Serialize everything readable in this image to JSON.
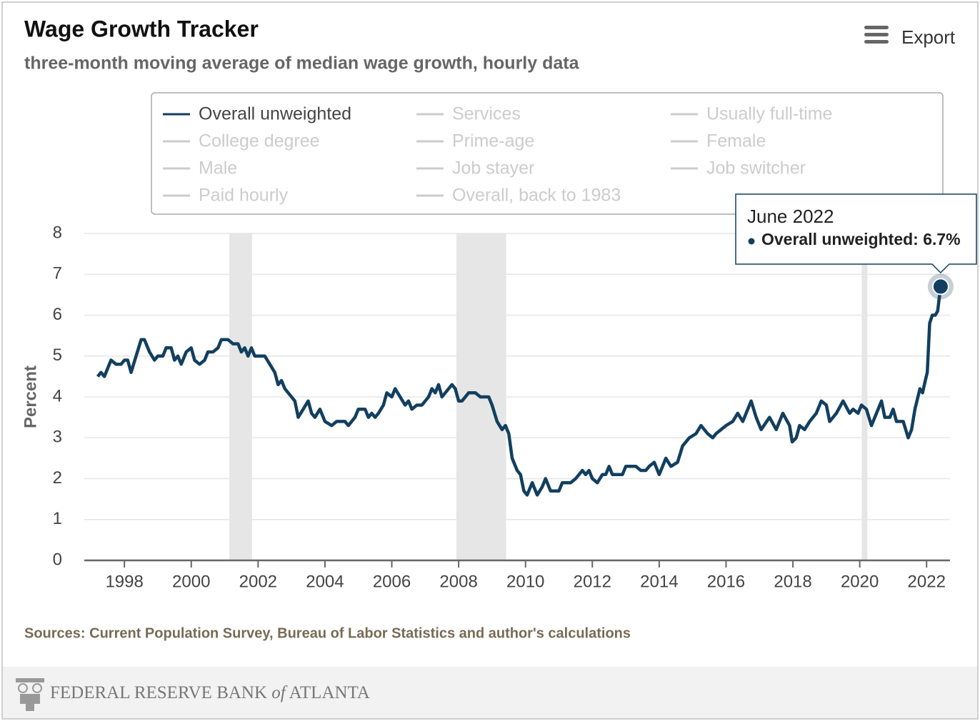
{
  "chart_data": {
    "type": "line",
    "title": "Wage Growth Tracker",
    "subtitle": "three-month moving average of median wage growth, hourly data",
    "export_label": "Export",
    "y_label": "Percent",
    "source": "Sources: Current Population Survey, Bureau of Labor Statistics and author's calculations",
    "footer": [
      "FEDERAL RESERVE BANK",
      "of",
      "ATLANTA"
    ],
    "xlim": [
      1996.8,
      2022.7
    ],
    "ylim": [
      0,
      8
    ],
    "xticks": [
      1998,
      2000,
      2002,
      2004,
      2006,
      2008,
      2010,
      2012,
      2014,
      2016,
      2018,
      2020,
      2022
    ],
    "yticks": [
      0,
      1,
      2,
      3,
      4,
      5,
      6,
      7,
      8
    ],
    "grid": true,
    "recessions": [
      [
        2001.14,
        2001.82
      ],
      [
        2007.93,
        2009.42
      ],
      [
        2020.06,
        2020.23
      ]
    ],
    "hidden_color": "#cccccc",
    "hidden_series": [
      "Services",
      "Usually full-time",
      "College degree",
      "Prime-age",
      "Female",
      "Male",
      "Job stayer",
      "Job switcher",
      "Paid hourly",
      "Overall, back to 1983"
    ],
    "tooltip": {
      "title": "June 2022",
      "text": "Overall unweighted: 6.7%"
    },
    "x": [
      1997.2,
      1997.3,
      1997.4,
      1997.5,
      1997.6,
      1997.75,
      1997.9,
      1998.0,
      1998.1,
      1998.2,
      1998.35,
      1998.5,
      1998.6,
      1998.75,
      1998.9,
      1999.0,
      1999.15,
      1999.25,
      1999.4,
      1999.5,
      1999.6,
      1999.7,
      1999.85,
      2000.0,
      2000.1,
      2000.25,
      2000.4,
      2000.5,
      2000.65,
      2000.8,
      2000.9,
      2001.1,
      2001.25,
      2001.4,
      2001.5,
      2001.6,
      2001.7,
      2001.8,
      2001.9,
      2002.2,
      2002.35,
      2002.5,
      2002.6,
      2002.7,
      2002.8,
      2003.0,
      2003.1,
      2003.2,
      2003.35,
      2003.5,
      2003.6,
      2003.7,
      2003.85,
      2004.0,
      2004.2,
      2004.35,
      2004.6,
      2004.7,
      2004.9,
      2005.0,
      2005.2,
      2005.3,
      2005.4,
      2005.5,
      2005.6,
      2005.75,
      2005.85,
      2006.0,
      2006.1,
      2006.25,
      2006.4,
      2006.5,
      2006.6,
      2006.75,
      2006.9,
      2007.1,
      2007.2,
      2007.3,
      2007.4,
      2007.5,
      2007.7,
      2007.8,
      2007.9,
      2008.0,
      2008.1,
      2008.3,
      2008.5,
      2008.65,
      2008.9,
      2009.0,
      2009.15,
      2009.3,
      2009.4,
      2009.5,
      2009.6,
      2009.75,
      2009.85,
      2009.95,
      2010.05,
      2010.2,
      2010.35,
      2010.5,
      2010.6,
      2010.75,
      2011.0,
      2011.1,
      2011.35,
      2011.5,
      2011.6,
      2011.7,
      2011.8,
      2011.9,
      2012.0,
      2012.15,
      2012.3,
      2012.4,
      2012.5,
      2012.6,
      2012.9,
      2013.0,
      2013.3,
      2013.45,
      2013.6,
      2013.7,
      2013.85,
      2014.0,
      2014.1,
      2014.2,
      2014.35,
      2014.55,
      2014.7,
      2014.9,
      2015.1,
      2015.25,
      2015.45,
      2015.6,
      2015.7,
      2015.85,
      2016.0,
      2016.2,
      2016.35,
      2016.5,
      2016.75,
      2016.9,
      2017.05,
      2017.3,
      2017.5,
      2017.7,
      2017.9,
      2017.98,
      2018.1,
      2018.2,
      2018.35,
      2018.5,
      2018.7,
      2018.85,
      2019.0,
      2019.1,
      2019.3,
      2019.5,
      2019.7,
      2019.8,
      2019.95,
      2020.05,
      2020.2,
      2020.35,
      2020.5,
      2020.65,
      2020.75,
      2020.9,
      2021.0,
      2021.1,
      2021.3,
      2021.45,
      2021.55,
      2021.65,
      2021.8,
      2021.88,
      2021.96,
      2022.02,
      2022.09,
      2022.17,
      2022.26,
      2022.33,
      2022.42
    ],
    "series": [
      {
        "name": "Overall unweighted",
        "color": "#123f5f",
        "values": [
          4.5,
          4.6,
          4.5,
          4.7,
          4.9,
          4.8,
          4.8,
          4.9,
          4.9,
          4.6,
          5.0,
          5.4,
          5.4,
          5.1,
          4.9,
          5.0,
          5.0,
          5.2,
          5.2,
          4.9,
          5.0,
          4.8,
          5.1,
          5.2,
          4.9,
          4.8,
          4.9,
          5.1,
          5.1,
          5.2,
          5.4,
          5.4,
          5.3,
          5.3,
          5.1,
          5.2,
          5.0,
          5.2,
          5.0,
          5.0,
          4.8,
          4.6,
          4.3,
          4.4,
          4.2,
          4.0,
          3.9,
          3.5,
          3.7,
          3.9,
          3.6,
          3.5,
          3.7,
          3.4,
          3.3,
          3.4,
          3.4,
          3.3,
          3.5,
          3.7,
          3.7,
          3.5,
          3.6,
          3.5,
          3.6,
          3.8,
          4.1,
          4.0,
          4.2,
          4.0,
          3.8,
          3.9,
          3.7,
          3.8,
          3.8,
          4.0,
          4.2,
          4.1,
          4.3,
          4.0,
          4.2,
          4.3,
          4.2,
          3.9,
          3.9,
          4.1,
          4.1,
          4.0,
          4.0,
          3.8,
          3.4,
          3.2,
          3.3,
          3.1,
          2.5,
          2.2,
          2.1,
          1.7,
          1.6,
          1.9,
          1.6,
          1.8,
          2.0,
          1.7,
          1.7,
          1.9,
          1.9,
          2.0,
          2.1,
          2.2,
          2.1,
          2.2,
          2.0,
          1.9,
          2.1,
          2.1,
          2.3,
          2.1,
          2.1,
          2.3,
          2.3,
          2.2,
          2.2,
          2.3,
          2.4,
          2.1,
          2.3,
          2.5,
          2.3,
          2.4,
          2.8,
          3.0,
          3.1,
          3.3,
          3.1,
          3.0,
          3.1,
          3.2,
          3.3,
          3.4,
          3.6,
          3.4,
          3.9,
          3.5,
          3.2,
          3.5,
          3.2,
          3.6,
          3.3,
          2.9,
          3.0,
          3.3,
          3.2,
          3.4,
          3.6,
          3.9,
          3.8,
          3.4,
          3.6,
          3.9,
          3.6,
          3.7,
          3.6,
          3.8,
          3.7,
          3.3,
          3.6,
          3.9,
          3.5,
          3.5,
          3.7,
          3.4,
          3.4,
          3.0,
          3.2,
          3.7,
          4.2,
          4.1,
          4.4,
          4.6,
          5.8,
          6.0,
          6.0,
          6.1,
          6.7
        ]
      }
    ]
  }
}
